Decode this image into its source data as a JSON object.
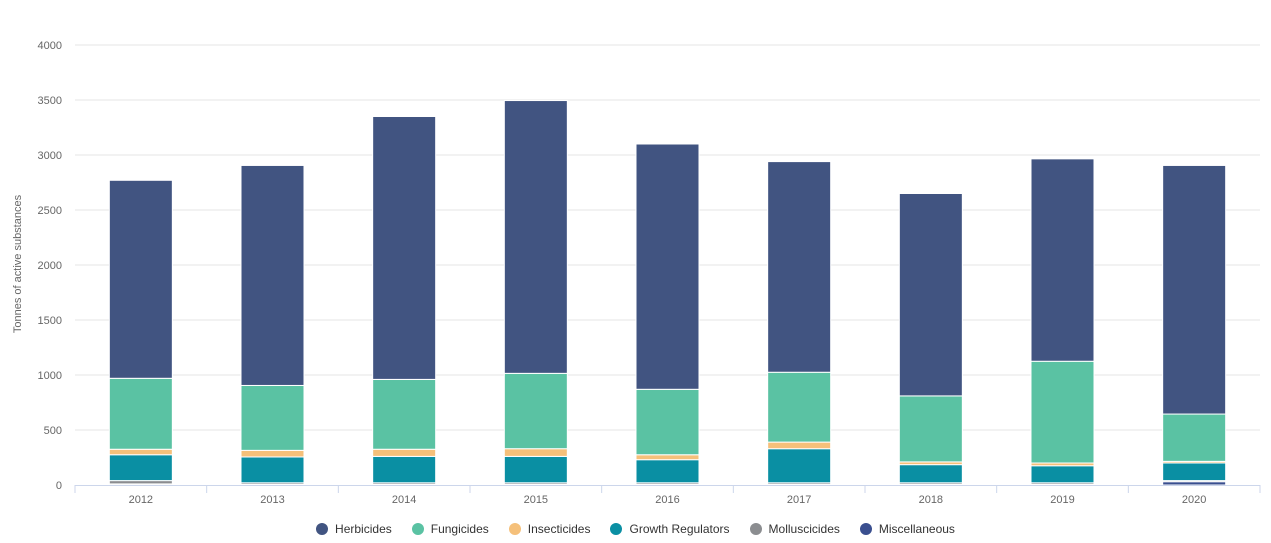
{
  "chart_data": {
    "type": "bar",
    "stacked": true,
    "categories": [
      "2012",
      "2013",
      "2014",
      "2015",
      "2016",
      "2017",
      "2018",
      "2019",
      "2020"
    ],
    "ylabel": "Tonnes of active substances",
    "ylim": [
      0,
      4000
    ],
    "yticks": [
      "0",
      "500",
      "1000",
      "1500",
      "2000",
      "2500",
      "3000",
      "3500",
      "4000"
    ],
    "grid": true,
    "legend_position": "bottom",
    "series": [
      {
        "name": "Miscellaneous",
        "color": "#3a4f8f",
        "values": [
          10,
          5,
          5,
          5,
          5,
          5,
          5,
          5,
          30
        ]
      },
      {
        "name": "Molluscicides",
        "color": "#8b8d90",
        "values": [
          30,
          15,
          15,
          15,
          15,
          15,
          15,
          15,
          10
        ]
      },
      {
        "name": "Growth Regulators",
        "color": "#0a8fa3",
        "values": [
          235,
          235,
          240,
          240,
          210,
          310,
          165,
          155,
          160
        ]
      },
      {
        "name": "Insecticides",
        "color": "#f5c07a",
        "values": [
          50,
          60,
          65,
          70,
          45,
          60,
          25,
          25,
          15
        ]
      },
      {
        "name": "Fungicides",
        "color": "#5ac2a3",
        "values": [
          645,
          590,
          635,
          685,
          595,
          635,
          600,
          925,
          430
        ]
      },
      {
        "name": "Herbicides",
        "color": "#415481",
        "values": [
          1800,
          2000,
          2390,
          2480,
          2230,
          1915,
          1840,
          1840,
          2260
        ]
      }
    ],
    "legend_order": [
      "Herbicides",
      "Fungicides",
      "Insecticides",
      "Growth Regulators",
      "Molluscicides",
      "Miscellaneous"
    ]
  }
}
